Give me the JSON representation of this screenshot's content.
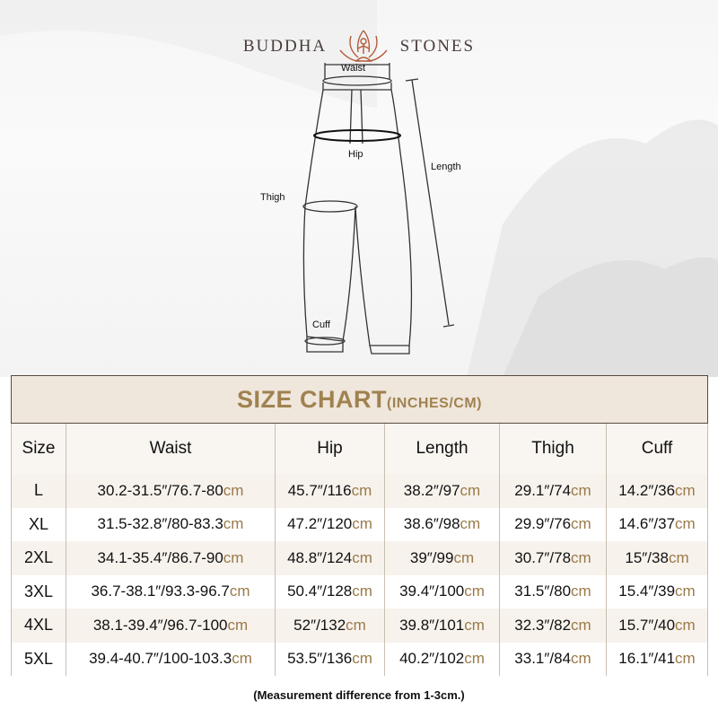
{
  "brand": {
    "left": "BUDDHA",
    "right": "STONES",
    "logo_icon": "lotus-meditation-icon"
  },
  "diagram": {
    "labels": {
      "waist": "Waist",
      "hip": "Hip",
      "length": "Length",
      "thigh": "Thigh",
      "cuff": "Cuff"
    }
  },
  "table": {
    "title": "SIZE CHART",
    "title_units": "(INCHES/CM)",
    "headers": [
      "Size",
      "Waist",
      "Hip",
      "Length",
      "Thigh",
      "Cuff"
    ],
    "unit_cm": "cm",
    "rows": [
      {
        "size": "L",
        "cells": [
          "30.2-31.5″/76.7-80",
          "45.7″/116",
          "38.2″/97",
          "29.1″/74",
          "14.2″/36"
        ]
      },
      {
        "size": "XL",
        "cells": [
          "31.5-32.8″/80-83.3",
          "47.2″/120",
          "38.6″/98",
          "29.9″/76",
          "14.6″/37"
        ]
      },
      {
        "size": "2XL",
        "cells": [
          "34.1-35.4″/86.7-90",
          "48.8″/124",
          "39″/99",
          "30.7″/78",
          "15″/38"
        ]
      },
      {
        "size": "3XL",
        "cells": [
          "36.7-38.1″/93.3-96.7",
          "50.4″/128",
          "39.4″/100",
          "31.5″/80",
          "15.4″/39"
        ]
      },
      {
        "size": "4XL",
        "cells": [
          "38.1-39.4″/96.7-100",
          "52″/132",
          "39.8″/101",
          "32.3″/82",
          "15.7″/40"
        ]
      },
      {
        "size": "5XL",
        "cells": [
          "39.4-40.7″/100-103.3",
          "53.5″/136",
          "40.2″/102",
          "33.1″/84",
          "16.1″/41"
        ]
      }
    ]
  },
  "note": "(Measurement difference from 1-3cm.)",
  "colors": {
    "title": "#a0824f",
    "header_bg": "#efe6dc",
    "cm": "#9a7a48"
  }
}
